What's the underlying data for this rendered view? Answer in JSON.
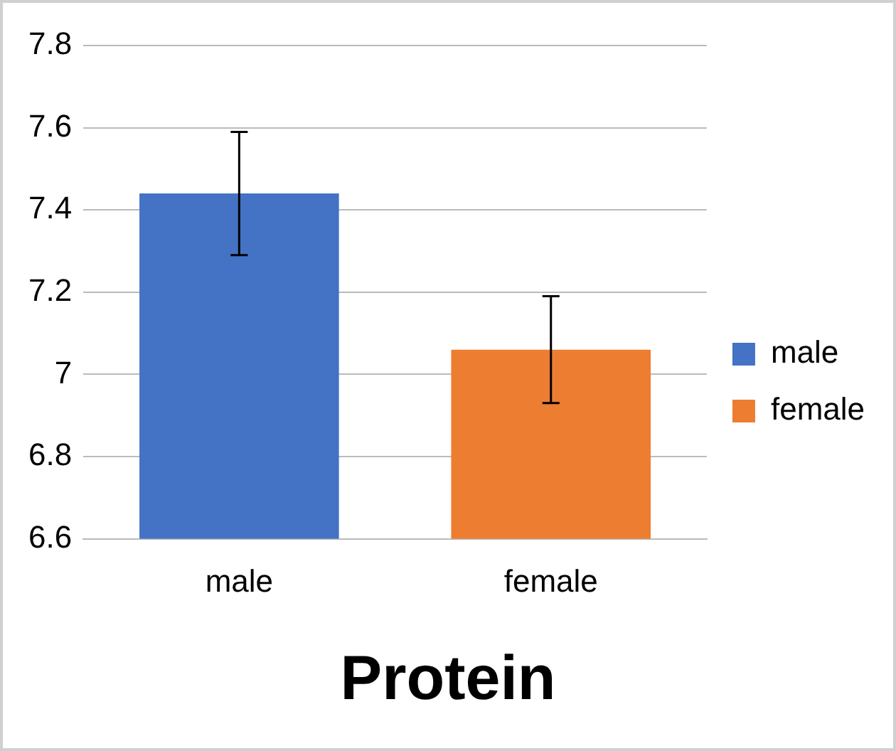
{
  "chart_data": {
    "type": "bar",
    "title": "Protein",
    "categories": [
      "male",
      "female"
    ],
    "series": [
      {
        "name": "male",
        "color": "#4472c4",
        "values": [
          7.44,
          null
        ],
        "errors": [
          0.15,
          null
        ]
      },
      {
        "name": "female",
        "color": "#ed7d31",
        "values": [
          null,
          7.06
        ],
        "errors": [
          null,
          0.13
        ]
      }
    ],
    "ylim": [
      6.6,
      7.8
    ],
    "yticks": [
      6.6,
      6.8,
      7,
      7.2,
      7.4,
      7.6,
      7.8
    ],
    "grid": "y",
    "legend": "right"
  }
}
